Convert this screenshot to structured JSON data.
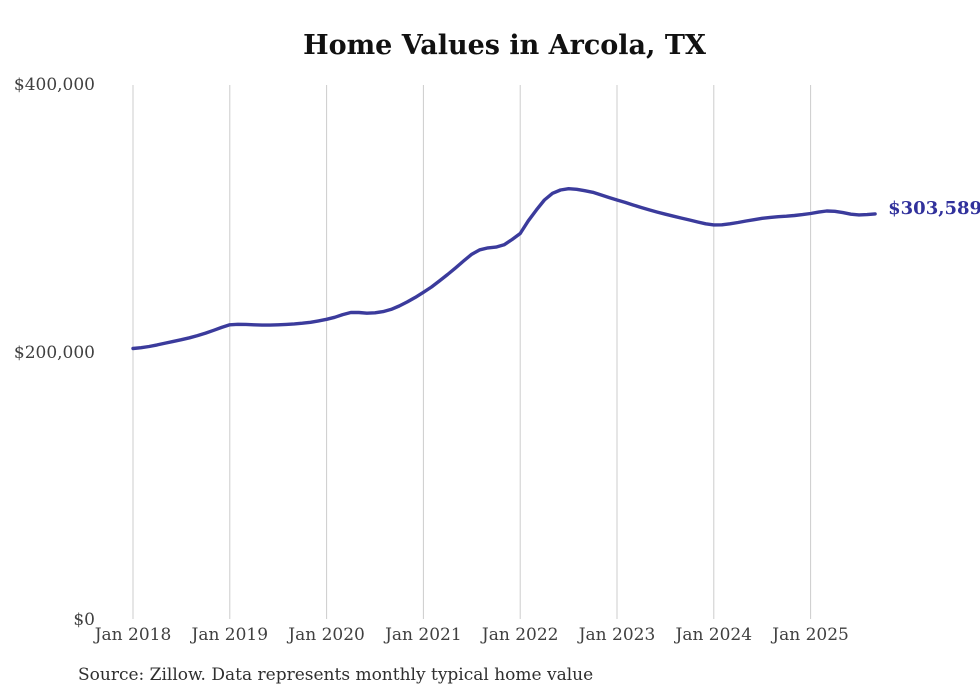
{
  "source_note": "Source: Zillow. Data represents monthly typical home value",
  "chart_data": {
    "type": "line",
    "title": "Home Values in Arcola, TX",
    "xlabel": "",
    "ylabel": "",
    "unit": "USD",
    "ylim": [
      0,
      400000
    ],
    "grid": "vertical-only",
    "legend": "none",
    "colors": {
      "line": "#3b3b9c",
      "grid": "#cccccc",
      "tick_text": "#404040",
      "title_text": "#111111",
      "source_text": "#2f2f2f",
      "end_label": "#31319c",
      "background": "#ffffff"
    },
    "y_ticks": [
      {
        "value": 0,
        "label": "$0"
      },
      {
        "value": 200000,
        "label": "$200,000"
      },
      {
        "value": 400000,
        "label": "$400,000"
      }
    ],
    "x_tick_labels": [
      "Jan 2018",
      "Jan 2019",
      "Jan 2020",
      "Jan 2021",
      "Jan 2022",
      "Jan 2023",
      "Jan 2024",
      "Jan 2025"
    ],
    "end_label": "$303,589",
    "end_value": 303589,
    "series": [
      {
        "name": "Typical home value",
        "months": [
          "2018-01",
          "2018-02",
          "2018-03",
          "2018-04",
          "2018-05",
          "2018-06",
          "2018-07",
          "2018-08",
          "2018-09",
          "2018-10",
          "2018-11",
          "2018-12",
          "2019-01",
          "2019-02",
          "2019-03",
          "2019-04",
          "2019-05",
          "2019-06",
          "2019-07",
          "2019-08",
          "2019-09",
          "2019-10",
          "2019-11",
          "2019-12",
          "2020-01",
          "2020-02",
          "2020-03",
          "2020-04",
          "2020-05",
          "2020-06",
          "2020-07",
          "2020-08",
          "2020-09",
          "2020-10",
          "2020-11",
          "2020-12",
          "2021-01",
          "2021-02",
          "2021-03",
          "2021-04",
          "2021-05",
          "2021-06",
          "2021-07",
          "2021-08",
          "2021-09",
          "2021-10",
          "2021-11",
          "2021-12",
          "2022-01",
          "2022-02",
          "2022-03",
          "2022-04",
          "2022-05",
          "2022-06",
          "2022-07",
          "2022-08",
          "2022-09",
          "2022-10",
          "2022-11",
          "2022-12",
          "2023-01",
          "2023-02",
          "2023-03",
          "2023-04",
          "2023-05",
          "2023-06",
          "2023-07",
          "2023-08",
          "2023-09",
          "2023-10",
          "2023-11",
          "2023-12",
          "2024-01",
          "2024-02",
          "2024-03",
          "2024-04",
          "2024-05",
          "2024-06",
          "2024-07",
          "2024-08",
          "2024-09",
          "2024-10",
          "2024-11",
          "2024-12",
          "2025-01",
          "2025-02",
          "2025-03",
          "2025-04",
          "2025-05",
          "2025-06",
          "2025-07",
          "2025-08",
          "2025-09"
        ],
        "values": [
          203000,
          203600,
          204500,
          205700,
          207000,
          208300,
          209600,
          211000,
          212600,
          214500,
          216600,
          218800,
          220700,
          221100,
          221000,
          220700,
          220500,
          220500,
          220700,
          221000,
          221400,
          221900,
          222600,
          223600,
          224800,
          226300,
          228300,
          229900,
          229900,
          229400,
          229700,
          230600,
          232200,
          234800,
          237800,
          241200,
          245000,
          249000,
          253500,
          258300,
          263300,
          268500,
          273500,
          276800,
          278200,
          278800,
          280500,
          284500,
          289000,
          298500,
          306500,
          314000,
          319000,
          321500,
          322500,
          322000,
          321000,
          319800,
          317800,
          315900,
          314000,
          312200,
          310300,
          308400,
          306600,
          305000,
          303400,
          301900,
          300500,
          299100,
          297600,
          296200,
          295400,
          295500,
          296200,
          297200,
          298300,
          299300,
          300300,
          301000,
          301500,
          301900,
          302400,
          303100,
          303900,
          305000,
          305800,
          305600,
          304600,
          303400,
          302900,
          303100,
          303589
        ]
      }
    ]
  }
}
